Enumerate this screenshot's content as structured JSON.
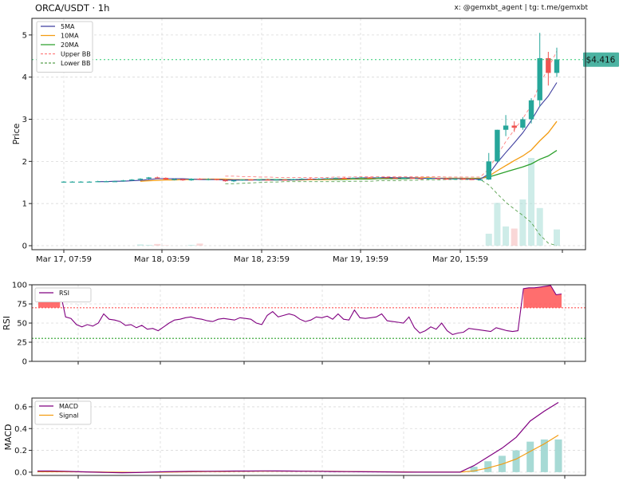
{
  "header": {
    "title": "ORCA/USDT · 1h",
    "credit": "x: @gemxbt_agent | tg: t.me/gemxbt"
  },
  "colors": {
    "up": "#26a69a",
    "down": "#ef5350",
    "sma5": "#3f3f9f",
    "ma10": "#f39c12",
    "ma20": "#2ca02c",
    "upper_bb": "#ff8080",
    "lower_bb": "#59a14f",
    "rsi": "#800080",
    "macd": "#800080",
    "signal": "#f39c12",
    "hist": "#9dd6d0",
    "price_line": "#2ecc71",
    "rsi_over": "#ff5555",
    "rsi_under": "#2ca02c"
  },
  "chart_data": [
    {
      "type": "candlestick",
      "ylabel": "Price",
      "ylim": [
        0,
        5.3
      ],
      "yticks": [
        0,
        1,
        2,
        3,
        4,
        5
      ],
      "xticks": [
        "Mar 17, 07:59",
        "Mar 18, 03:59",
        "Mar 18, 23:59",
        "Mar 19, 19:59",
        "Mar 20, 15:59"
      ],
      "last_price": 4.416,
      "last_price_label": "$4.416",
      "legend": [
        "5MA",
        "10MA",
        "20MA",
        "Upper BB",
        "Lower BB"
      ],
      "candles": [
        {
          "o": 1.52,
          "h": 1.53,
          "l": 1.51,
          "c": 1.52
        },
        {
          "o": 1.52,
          "h": 1.53,
          "l": 1.51,
          "c": 1.52
        },
        {
          "o": 1.52,
          "h": 1.53,
          "l": 1.51,
          "c": 1.52
        },
        {
          "o": 1.52,
          "h": 1.53,
          "l": 1.51,
          "c": 1.52
        },
        {
          "o": 1.52,
          "h": 1.54,
          "l": 1.51,
          "c": 1.53
        },
        {
          "o": 1.53,
          "h": 1.54,
          "l": 1.52,
          "c": 1.53
        },
        {
          "o": 1.53,
          "h": 1.54,
          "l": 1.52,
          "c": 1.53
        },
        {
          "o": 1.53,
          "h": 1.56,
          "l": 1.52,
          "c": 1.55
        },
        {
          "o": 1.55,
          "h": 1.58,
          "l": 1.54,
          "c": 1.57
        },
        {
          "o": 1.57,
          "h": 1.6,
          "l": 1.56,
          "c": 1.59
        },
        {
          "o": 1.59,
          "h": 1.63,
          "l": 1.58,
          "c": 1.62
        },
        {
          "o": 1.62,
          "h": 1.64,
          "l": 1.6,
          "c": 1.61
        },
        {
          "o": 1.61,
          "h": 1.62,
          "l": 1.56,
          "c": 1.57
        },
        {
          "o": 1.57,
          "h": 1.6,
          "l": 1.55,
          "c": 1.58
        },
        {
          "o": 1.58,
          "h": 1.59,
          "l": 1.54,
          "c": 1.55
        },
        {
          "o": 1.55,
          "h": 1.6,
          "l": 1.54,
          "c": 1.59
        },
        {
          "o": 1.59,
          "h": 1.6,
          "l": 1.56,
          "c": 1.57
        },
        {
          "o": 1.57,
          "h": 1.6,
          "l": 1.55,
          "c": 1.58
        },
        {
          "o": 1.58,
          "h": 1.59,
          "l": 1.55,
          "c": 1.56
        },
        {
          "o": 1.56,
          "h": 1.57,
          "l": 1.52,
          "c": 1.53
        },
        {
          "o": 1.53,
          "h": 1.56,
          "l": 1.51,
          "c": 1.55
        },
        {
          "o": 1.55,
          "h": 1.58,
          "l": 1.54,
          "c": 1.57
        },
        {
          "o": 1.57,
          "h": 1.58,
          "l": 1.55,
          "c": 1.56
        },
        {
          "o": 1.56,
          "h": 1.58,
          "l": 1.54,
          "c": 1.57
        },
        {
          "o": 1.57,
          "h": 1.59,
          "l": 1.55,
          "c": 1.56
        },
        {
          "o": 1.56,
          "h": 1.58,
          "l": 1.55,
          "c": 1.57
        },
        {
          "o": 1.57,
          "h": 1.58,
          "l": 1.55,
          "c": 1.56
        },
        {
          "o": 1.56,
          "h": 1.59,
          "l": 1.55,
          "c": 1.58
        },
        {
          "o": 1.58,
          "h": 1.6,
          "l": 1.57,
          "c": 1.59
        },
        {
          "o": 1.59,
          "h": 1.61,
          "l": 1.57,
          "c": 1.58
        },
        {
          "o": 1.58,
          "h": 1.6,
          "l": 1.57,
          "c": 1.59
        },
        {
          "o": 1.59,
          "h": 1.61,
          "l": 1.58,
          "c": 1.6
        },
        {
          "o": 1.6,
          "h": 1.62,
          "l": 1.59,
          "c": 1.61
        },
        {
          "o": 1.61,
          "h": 1.62,
          "l": 1.59,
          "c": 1.6
        },
        {
          "o": 1.6,
          "h": 1.62,
          "l": 1.59,
          "c": 1.61
        },
        {
          "o": 1.61,
          "h": 1.63,
          "l": 1.6,
          "c": 1.62
        },
        {
          "o": 1.62,
          "h": 1.63,
          "l": 1.6,
          "c": 1.61
        },
        {
          "o": 1.61,
          "h": 1.63,
          "l": 1.6,
          "c": 1.62
        },
        {
          "o": 1.62,
          "h": 1.63,
          "l": 1.6,
          "c": 1.61
        },
        {
          "o": 1.61,
          "h": 1.62,
          "l": 1.59,
          "c": 1.6
        },
        {
          "o": 1.6,
          "h": 1.62,
          "l": 1.59,
          "c": 1.61
        },
        {
          "o": 1.61,
          "h": 1.62,
          "l": 1.59,
          "c": 1.6
        },
        {
          "o": 1.6,
          "h": 1.61,
          "l": 1.58,
          "c": 1.59
        },
        {
          "o": 1.59,
          "h": 1.61,
          "l": 1.58,
          "c": 1.6
        },
        {
          "o": 1.6,
          "h": 1.61,
          "l": 1.58,
          "c": 1.59
        },
        {
          "o": 1.59,
          "h": 1.6,
          "l": 1.57,
          "c": 1.58
        },
        {
          "o": 1.58,
          "h": 1.6,
          "l": 1.57,
          "c": 1.59
        },
        {
          "o": 1.59,
          "h": 1.6,
          "l": 1.57,
          "c": 1.58
        },
        {
          "o": 1.58,
          "h": 1.59,
          "l": 1.56,
          "c": 1.57
        },
        {
          "o": 1.57,
          "h": 1.58,
          "l": 1.56,
          "c": 1.57
        },
        {
          "o": 1.57,
          "h": 2.2,
          "l": 1.56,
          "c": 2.0
        },
        {
          "o": 2.0,
          "h": 2.75,
          "l": 1.98,
          "c": 2.75
        },
        {
          "o": 2.75,
          "h": 3.1,
          "l": 2.6,
          "c": 2.85
        },
        {
          "o": 2.85,
          "h": 2.95,
          "l": 2.7,
          "c": 2.8
        },
        {
          "o": 2.8,
          "h": 3.05,
          "l": 2.75,
          "c": 3.0
        },
        {
          "o": 3.0,
          "h": 3.5,
          "l": 2.9,
          "c": 3.45
        },
        {
          "o": 3.45,
          "h": 5.05,
          "l": 3.3,
          "c": 4.45
        },
        {
          "o": 4.45,
          "h": 4.6,
          "l": 3.8,
          "c": 4.1
        },
        {
          "o": 4.1,
          "h": 4.7,
          "l": 4.0,
          "c": 4.42
        }
      ],
      "ma5": [
        null,
        null,
        null,
        null,
        1.52,
        1.52,
        1.53,
        1.53,
        1.54,
        1.55,
        1.57,
        1.59,
        1.59,
        1.59,
        1.59,
        1.58,
        1.57,
        1.57,
        1.57,
        1.56,
        1.56,
        1.56,
        1.56,
        1.56,
        1.56,
        1.56,
        1.56,
        1.56,
        1.57,
        1.58,
        1.58,
        1.59,
        1.59,
        1.6,
        1.6,
        1.61,
        1.61,
        1.61,
        1.62,
        1.61,
        1.61,
        1.61,
        1.6,
        1.6,
        1.6,
        1.59,
        1.59,
        1.59,
        1.58,
        1.58,
        1.7,
        1.97,
        2.21,
        2.44,
        2.68,
        2.97,
        3.31,
        3.55,
        3.87
      ],
      "ma10": [
        null,
        null,
        null,
        null,
        null,
        null,
        null,
        null,
        null,
        1.53,
        1.54,
        1.55,
        1.56,
        1.56,
        1.57,
        1.57,
        1.58,
        1.58,
        1.58,
        1.58,
        1.57,
        1.57,
        1.57,
        1.56,
        1.56,
        1.56,
        1.56,
        1.56,
        1.56,
        1.57,
        1.57,
        1.57,
        1.58,
        1.58,
        1.59,
        1.6,
        1.6,
        1.6,
        1.61,
        1.61,
        1.61,
        1.61,
        1.61,
        1.61,
        1.6,
        1.6,
        1.6,
        1.6,
        1.59,
        1.59,
        1.65,
        1.78,
        1.9,
        2.02,
        2.13,
        2.27,
        2.49,
        2.68,
        2.95
      ],
      "ma20": [
        null,
        null,
        null,
        null,
        null,
        null,
        null,
        null,
        null,
        null,
        null,
        null,
        null,
        null,
        null,
        null,
        null,
        null,
        null,
        1.56,
        1.56,
        1.56,
        1.56,
        1.57,
        1.57,
        1.57,
        1.57,
        1.57,
        1.57,
        1.57,
        1.57,
        1.57,
        1.57,
        1.57,
        1.58,
        1.58,
        1.58,
        1.59,
        1.59,
        1.59,
        1.59,
        1.6,
        1.6,
        1.6,
        1.6,
        1.6,
        1.6,
        1.6,
        1.6,
        1.6,
        1.63,
        1.69,
        1.75,
        1.81,
        1.87,
        1.94,
        2.05,
        2.13,
        2.26
      ],
      "upper_bb": [
        null,
        null,
        null,
        null,
        null,
        null,
        null,
        null,
        null,
        null,
        null,
        null,
        null,
        null,
        null,
        null,
        null,
        null,
        null,
        1.65,
        1.65,
        1.64,
        1.64,
        1.63,
        1.63,
        1.62,
        1.62,
        1.62,
        1.62,
        1.62,
        1.62,
        1.62,
        1.63,
        1.63,
        1.63,
        1.64,
        1.64,
        1.64,
        1.64,
        1.64,
        1.64,
        1.64,
        1.64,
        1.64,
        1.64,
        1.63,
        1.63,
        1.63,
        1.63,
        1.63,
        1.82,
        2.15,
        2.47,
        2.75,
        3.02,
        3.33,
        3.85,
        4.2,
        4.62
      ],
      "lower_bb": [
        null,
        null,
        null,
        null,
        null,
        null,
        null,
        null,
        null,
        null,
        null,
        null,
        null,
        null,
        null,
        null,
        null,
        null,
        null,
        1.47,
        1.47,
        1.48,
        1.49,
        1.5,
        1.51,
        1.51,
        1.52,
        1.52,
        1.52,
        1.52,
        1.52,
        1.52,
        1.52,
        1.52,
        1.53,
        1.53,
        1.53,
        1.54,
        1.54,
        1.54,
        1.55,
        1.55,
        1.56,
        1.56,
        1.56,
        1.57,
        1.57,
        1.57,
        1.57,
        1.57,
        1.44,
        1.23,
        1.03,
        0.87,
        0.72,
        0.55,
        0.26,
        0.06,
        0.0
      ],
      "volume": [
        0,
        0,
        0,
        0,
        0,
        0,
        0,
        0,
        0,
        0.03,
        0.02,
        0.04,
        0.01,
        0,
        0,
        0.02,
        0.05,
        0,
        0,
        0,
        0,
        0,
        0,
        0,
        0,
        0,
        0,
        0,
        0,
        0,
        0,
        0,
        0,
        0,
        0,
        0,
        0,
        0,
        0,
        0,
        0,
        0,
        0,
        0,
        0,
        0,
        0,
        0,
        0,
        0,
        0.28,
        1.0,
        0.45,
        0.4,
        1.08,
        2.05,
        0.88,
        0,
        0.38
      ]
    },
    {
      "type": "line",
      "ylabel": "RSI",
      "ylim": [
        0,
        100
      ],
      "yticks": [
        0,
        25,
        50,
        75,
        100
      ],
      "overbought": 70,
      "oversold": 30,
      "legend": [
        "RSI"
      ],
      "series": [
        {
          "name": "RSI",
          "values": [
            89,
            91,
            92,
            93,
            92,
            58,
            56,
            48,
            45,
            48,
            46,
            50,
            62,
            55,
            54,
            52,
            47,
            48,
            44,
            47,
            42,
            43,
            40,
            45,
            50,
            54,
            55,
            57,
            58,
            56,
            55,
            53,
            52,
            55,
            56,
            55,
            54,
            57,
            56,
            55,
            50,
            48,
            60,
            65,
            58,
            60,
            62,
            60,
            55,
            52,
            54,
            58,
            57,
            59,
            55,
            62,
            55,
            54,
            67,
            57,
            56,
            57,
            58,
            62,
            53,
            52,
            51,
            50,
            58,
            44,
            37,
            40,
            45,
            42,
            50,
            40,
            35,
            37,
            38,
            43,
            42,
            41,
            40,
            39,
            44,
            42,
            40,
            39,
            40,
            95,
            96,
            96,
            97,
            98,
            99,
            87,
            88
          ]
        }
      ]
    },
    {
      "type": "line",
      "ylabel": "MACD",
      "ylim": [
        -0.03,
        0.68
      ],
      "yticks": [
        0.0,
        0.2,
        0.4,
        0.6
      ],
      "legend": [
        "MACD",
        "Signal"
      ],
      "series": [
        {
          "name": "MACD",
          "values": [
            0.01,
            0.01,
            0.008,
            0.004,
            0.0,
            -0.003,
            -0.005,
            -0.004,
            0.0,
            0.004,
            0.006,
            0.007,
            0.008,
            0.009,
            0.01,
            0.01,
            0.012,
            0.011,
            0.01,
            0.009,
            0.008,
            0.006,
            0.005,
            0.004,
            0.003,
            0.002,
            0.0,
            0.0,
            0.0,
            0.0,
            0.0,
            0.06,
            0.14,
            0.22,
            0.32,
            0.47,
            0.56,
            0.64
          ]
        },
        {
          "name": "Signal",
          "values": [
            0.004,
            0.004,
            0.004,
            0.003,
            0.002,
            0.0,
            -0.001,
            -0.002,
            -0.001,
            0.0,
            0.002,
            0.004,
            0.005,
            0.006,
            0.007,
            0.008,
            0.009,
            0.009,
            0.009,
            0.009,
            0.008,
            0.007,
            0.006,
            0.005,
            0.004,
            0.003,
            0.002,
            0.001,
            0.0,
            0.0,
            0.0,
            0.012,
            0.038,
            0.074,
            0.12,
            0.19,
            0.26,
            0.34
          ]
        }
      ],
      "histogram": [
        0,
        0,
        0,
        0,
        0,
        0,
        0,
        0,
        0,
        0,
        0,
        0,
        0,
        0,
        0,
        0,
        0,
        0,
        0,
        0,
        0,
        0,
        0,
        0,
        0,
        0,
        0,
        0,
        0,
        0,
        0,
        0.05,
        0.1,
        0.15,
        0.2,
        0.28,
        0.3,
        0.3
      ]
    }
  ]
}
